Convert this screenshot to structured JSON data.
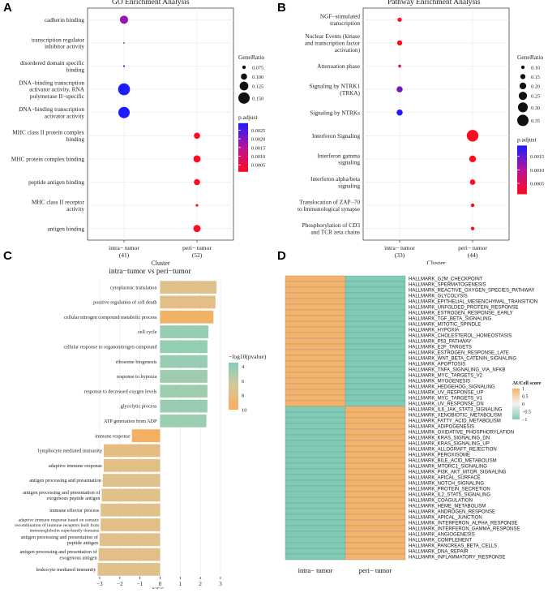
{
  "chart_data": [
    {
      "panel": "A",
      "type": "scatter",
      "title": "GO Enrichment Analysis",
      "xlabel": "Cluster",
      "categories": [
        "intra− tumor",
        "peri− tumor"
      ],
      "category_counts": [
        "(41)",
        "(52)"
      ],
      "terms": [
        "cadherin binding",
        "transcription regulator inhibitor activity",
        "disordered domain specific binding",
        "DNA−binding transcription activator activity, RNA polymerase II−specific",
        "DNA−binding transcription activator activity",
        "MHC class II protein complex binding",
        "MHC protein complex binding",
        "peptide antigen binding",
        "MHC class II receptor activity",
        "antigen binding"
      ],
      "points": [
        {
          "term": 0,
          "cluster": 0,
          "gene_ratio": 0.12,
          "p_adjust": 0.0018
        },
        {
          "term": 1,
          "cluster": 0,
          "gene_ratio": 0.055,
          "p_adjust": 0.0012
        },
        {
          "term": 2,
          "cluster": 0,
          "gene_ratio": 0.058,
          "p_adjust": 0.0026
        },
        {
          "term": 3,
          "cluster": 0,
          "gene_ratio": 0.155,
          "p_adjust": 0.0029
        },
        {
          "term": 4,
          "cluster": 0,
          "gene_ratio": 0.15,
          "p_adjust": 0.0029
        },
        {
          "term": 5,
          "cluster": 1,
          "gene_ratio": 0.1,
          "p_adjust": 0.0001
        },
        {
          "term": 6,
          "cluster": 1,
          "gene_ratio": 0.11,
          "p_adjust": 0.0001
        },
        {
          "term": 7,
          "cluster": 1,
          "gene_ratio": 0.1,
          "p_adjust": 0.0001
        },
        {
          "term": 8,
          "cluster": 1,
          "gene_ratio": 0.065,
          "p_adjust": 0.0001
        },
        {
          "term": 9,
          "cluster": 1,
          "gene_ratio": 0.11,
          "p_adjust": 0.0001
        }
      ],
      "size_legend": {
        "title": "GeneRatio",
        "values": [
          0.075,
          0.1,
          0.125,
          0.15
        ],
        "labels": [
          "0.075",
          "0.100",
          "0.125",
          "0.150"
        ]
      },
      "color_legend": {
        "title": "p.adjust",
        "range": [
          0.0001,
          0.0029
        ],
        "ticks": [
          0.0025,
          0.002,
          0.0015,
          0.001,
          0.0005
        ],
        "labels": [
          "0.0025",
          "0.0020",
          "0.0015",
          "0.0010",
          "0.0005"
        ]
      }
    },
    {
      "panel": "B",
      "type": "scatter",
      "title": "Pathway Enrichment Analysis",
      "xlabel": "Cluster",
      "categories": [
        "intra− tumor",
        "peri− tumor"
      ],
      "category_counts": [
        "(33)",
        "(44)"
      ],
      "terms": [
        "NGF−stimulated transcription",
        "Nuclear Events (kinase and transcription factor activation)",
        "Attenuation phase",
        "Signaling by NTRK1 (TRKA)",
        "Signaling by NTRKs",
        "Interferon Signaling",
        "Interferon gamma signaling",
        "Interferon alpha/beta signaling",
        "Translocation of ZAP−70 to Immunological synapse",
        "Phosphorylation of CD3 and TCR zeta chains"
      ],
      "points": [
        {
          "term": 0,
          "cluster": 0,
          "gene_ratio": 0.12,
          "p_adjust": 0.0001
        },
        {
          "term": 1,
          "cluster": 0,
          "gene_ratio": 0.15,
          "p_adjust": 0.0001
        },
        {
          "term": 2,
          "cluster": 0,
          "gene_ratio": 0.08,
          "p_adjust": 0.0006
        },
        {
          "term": 3,
          "cluster": 0,
          "gene_ratio": 0.18,
          "p_adjust": 0.0014
        },
        {
          "term": 4,
          "cluster": 0,
          "gene_ratio": 0.18,
          "p_adjust": 0.0019
        },
        {
          "term": 5,
          "cluster": 1,
          "gene_ratio": 0.36,
          "p_adjust": 0.0001
        },
        {
          "term": 6,
          "cluster": 1,
          "gene_ratio": 0.2,
          "p_adjust": 0.0001
        },
        {
          "term": 7,
          "cluster": 1,
          "gene_ratio": 0.16,
          "p_adjust": 0.0001
        },
        {
          "term": 8,
          "cluster": 1,
          "gene_ratio": 0.1,
          "p_adjust": 0.0001
        },
        {
          "term": 9,
          "cluster": 1,
          "gene_ratio": 0.1,
          "p_adjust": 0.0001
        }
      ],
      "size_legend": {
        "title": "GeneRatio",
        "values": [
          0.1,
          0.15,
          0.2,
          0.25,
          0.3,
          0.35
        ],
        "labels": [
          "0.10",
          "0.15",
          "0.20",
          "0.25",
          "0.30",
          "0.35"
        ]
      },
      "color_legend": {
        "title": "p.adjust",
        "range": [
          0.0001,
          0.0019
        ],
        "ticks": [
          0.0015,
          0.001,
          0.0005
        ],
        "labels": [
          "0.0015",
          "0.0010",
          "0.0005"
        ]
      }
    },
    {
      "panel": "C",
      "type": "bar",
      "orientation": "horizontal",
      "title": "intra−tumor vs peri−tumor",
      "xlabel": "NES",
      "xlim": [
        -3.2,
        3
      ],
      "xticks": [
        -3,
        -2,
        -1,
        0,
        1,
        2,
        3
      ],
      "xtick_labels": [
        "−3",
        "−2",
        "−1",
        "0",
        "1",
        "2",
        "3"
      ],
      "categories": [
        "cytoplasmic translation",
        "positive regulation of cell death",
        "cellular nitrogen compound metabolic process",
        "cell cycle",
        "cellular response to organonitrogen compound",
        "ribosome biogenesis",
        "response to hypoxia",
        "response to decreased oxygen levels",
        "glycolytic process",
        "ATP generation from ADP",
        "immune response",
        "lymphocyte mediated immunity",
        "adaptive immune response",
        "antigen processing and presentation",
        "antigen processing and presentation of exogenous peptide antigen",
        "immune effector process",
        "adaptive immune response based on somatic recombination of immune receptors built from immunoglobulin superfamily domains",
        "antigen processing and presentation of peptide antigen",
        "antigen processing and presentation of exogenous antigen",
        "leukocyte mediated immunity"
      ],
      "values": [
        2.8,
        2.75,
        2.65,
        2.4,
        2.35,
        2.35,
        2.35,
        2.35,
        2.35,
        2.3,
        -1.4,
        -2.8,
        -2.8,
        -2.85,
        -2.9,
        -2.95,
        -2.95,
        -3.0,
        -3.05,
        -3.1
      ],
      "neg_log10_pvalue": [
        7.5,
        7.8,
        9.5,
        4.2,
        4.1,
        4.3,
        4.5,
        4.5,
        4.3,
        4.4,
        9.8,
        8.0,
        7.8,
        7.5,
        7.6,
        7.6,
        7.8,
        7.6,
        7.8,
        7.5
      ],
      "color_legend": {
        "title": "−log10(pvalue)",
        "range": [
          3.5,
          10
        ],
        "ticks": [
          4,
          6,
          8,
          10
        ],
        "labels": [
          "4",
          "6",
          "8",
          "10"
        ]
      }
    },
    {
      "panel": "D",
      "type": "heatmap",
      "columns": [
        "intra− tumor",
        "peri− tumor"
      ],
      "rows": [
        "HALLMARK_G2M_CHECKPOINT",
        "HALLMARK_SPERMATOGENESIS",
        "HALLMARK_REACTIVE_OXYGEN_SPECIES_PATHWAY",
        "HALLMARK_GLYCOLYSIS",
        "HALLMARK_EPITHELIAL_MESENCHYMAL_TRANSITION",
        "HALLMARK_UNFOLDED_PROTEIN_RESPONSE",
        "HALLMARK_ESTROGEN_RESPONSE_EARLY",
        "HALLMARK_TGF_BETA_SIGNALING",
        "HALLMARK_MITOTIC_SPINDLE",
        "HALLMARK_HYPOXIA",
        "HALLMARK_CHOLESTEROL_HOMEOSTASIS",
        "HALLMARK_P53_PATHWAY",
        "HALLMARK_E2F_TARGETS",
        "HALLMARK_ESTROGEN_RESPONSE_LATE",
        "HALLMARK_WNT_BETA_CATENIN_SIGNALING",
        "HALLMARK_APOPTOSIS",
        "HALLMARK_TNFA_SIGNALING_VIA_NFKB",
        "HALLMARK_MYC_TARGETS_V2",
        "HALLMARK_MYOGENESIS",
        "HALLMARK_HEDGEHOG_SIGNALING",
        "HALLMARK_UV_RESPONSE_UP",
        "HALLMARK_MYC_TARGETS_V1",
        "HALLMARK_UV_RESPONSE_DN",
        "HALLMARK_IL6_JAK_STAT3_SIGNALING",
        "HALLMARK_XENOBIOTIC_METABOLISM",
        "HALLMARK_FATTY_ACID_METABOLISM",
        "HALLMARK_ADIPOGENESIS",
        "HALLMARK_OXIDATIVE_PHOSPHORYLATION",
        "HALLMARK_KRAS_SIGNALING_DN",
        "HALLMARK_KRAS_SIGNALING_UP",
        "HALLMARK_ALLOGRAFT_REJECTION",
        "HALLMARK_PEROXISOME",
        "HALLMARK_BILE_ACID_METABOLISM",
        "HALLMARK_MTORC1_SIGNALING",
        "HALLMARK_PI3K_AKT_MTOR_SIGNALING",
        "HALLMARK_APICAL_SURFACE",
        "HALLMARK_NOTCH_SIGNALING",
        "HALLMARK_PROTEIN_SECRETION",
        "HALLMARK_IL2_STAT5_SIGNALING",
        "HALLMARK_COAGULATION",
        "HALLMARK_HEME_METABOLISM",
        "HALLMARK_ANDROGEN_RESPONSE",
        "HALLMARK_APICAL_JUNCTION",
        "HALLMARK_INTERFERON_ALPHA_RESPONSE",
        "HALLMARK_INTERFERON_GAMMA_RESPONSE",
        "HALLMARK_ANGIOGENESIS",
        "HALLMARK_COMPLEMENT",
        "HALLMARK_PANCREAS_BETA_CELLS",
        "HALLMARK_DNA_REPAIR",
        "HALLMARK_INFLAMMATORY_RESPONSE"
      ],
      "high_in_intra_count": 23,
      "values_note": "rows 1-23: intra = 1, peri = -1; rows 24-50: intra = -1, peri = 1",
      "color_legend": {
        "title": "AUCell score",
        "range": [
          -1,
          1
        ],
        "ticks": [
          1,
          0.5,
          0,
          -0.5,
          -1
        ],
        "labels": [
          "1",
          "0.5",
          "0",
          "−0.5",
          "−1"
        ]
      }
    }
  ],
  "panel_letters": [
    "A",
    "B",
    "C",
    "D"
  ],
  "colors": {
    "padj_low": "#ff0a1e",
    "padj_mid": "#b8149a",
    "padj_high": "#1c1cff",
    "heat_pos": "#f4b26a",
    "heat_zero": "#f2f2f2",
    "heat_neg": "#7ecbb6",
    "bar_low": "#83cfb8",
    "bar_mid": "#d9c69a",
    "bar_high": "#f7ae5c",
    "panel_bg": "#ffffff",
    "grid": "#e6e6e6"
  }
}
